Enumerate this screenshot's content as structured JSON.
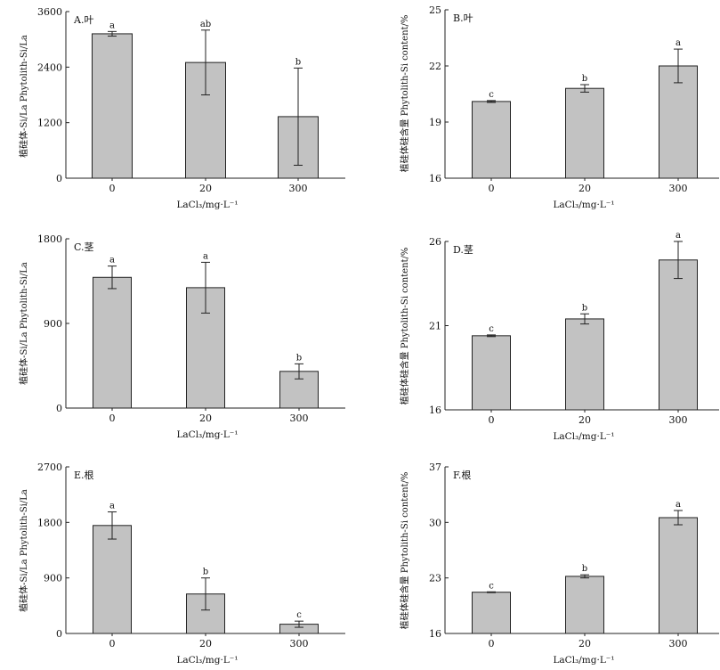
{
  "chart_data": [
    {
      "type": "bar",
      "panel_label": "A.叶",
      "categories": [
        "0",
        "20",
        "300"
      ],
      "values": [
        3120,
        2500,
        1330
      ],
      "errors": [
        50,
        700,
        1050
      ],
      "sig_letters": [
        "a",
        "ab",
        "b"
      ],
      "ylim": [
        0,
        3600
      ],
      "yticks": [
        "0",
        "1200",
        "2400",
        "3600"
      ],
      "xlabel": "LaCl₃/mg·L⁻¹",
      "ylabel": "植硅体-Si/La Phytolith-Si/La"
    },
    {
      "type": "bar",
      "panel_label": "B.叶",
      "categories": [
        "0",
        "20",
        "300"
      ],
      "values": [
        20.1,
        20.8,
        22.0
      ],
      "errors": [
        0.05,
        0.2,
        0.9
      ],
      "sig_letters": [
        "c",
        "b",
        "a"
      ],
      "ylim": [
        16,
        25
      ],
      "yticks": [
        "16",
        "19",
        "22",
        "25"
      ],
      "xlabel": "LaCl₃/mg·L⁻¹",
      "ylabel": "植硅体硅含量 Phytolith-Si content/%"
    },
    {
      "type": "bar",
      "panel_label": "C.茎",
      "categories": [
        "0",
        "20",
        "300"
      ],
      "values": [
        1390,
        1280,
        390
      ],
      "errors": [
        120,
        270,
        80
      ],
      "sig_letters": [
        "a",
        "a",
        "b"
      ],
      "ylim": [
        0,
        1800
      ],
      "yticks": [
        "0",
        "900",
        "1800"
      ],
      "xlabel": "LaCl₃/mg·L⁻¹",
      "ylabel": "植硅体-Si/La Phytolith-Si/La"
    },
    {
      "type": "bar",
      "panel_label": "D.茎",
      "categories": [
        "0",
        "20",
        "300"
      ],
      "values": [
        20.4,
        21.4,
        24.9
      ],
      "errors": [
        0.05,
        0.3,
        1.1
      ],
      "sig_letters": [
        "c",
        "b",
        "a"
      ],
      "ylim": [
        16,
        26
      ],
      "yticks": [
        "16",
        "21",
        "26"
      ],
      "xlabel": "LaCl₃/mg·L⁻¹",
      "ylabel": "植硅体硅含量 Phytolith-Si content/%"
    },
    {
      "type": "bar",
      "panel_label": "E.根",
      "categories": [
        "0",
        "20",
        "300"
      ],
      "values": [
        1750,
        640,
        150
      ],
      "errors": [
        220,
        260,
        50
      ],
      "sig_letters": [
        "a",
        "b",
        "c"
      ],
      "ylim": [
        0,
        2700
      ],
      "yticks": [
        "0",
        "900",
        "1800",
        "2700"
      ],
      "xlabel": "LaCl₃/mg·L⁻¹",
      "ylabel": "植硅体-Si/La Phytolith-Si/La"
    },
    {
      "type": "bar",
      "panel_label": "F.根",
      "categories": [
        "0",
        "20",
        "300"
      ],
      "values": [
        21.2,
        23.2,
        30.6
      ],
      "errors": [
        0.05,
        0.2,
        0.9
      ],
      "sig_letters": [
        "c",
        "b",
        "a"
      ],
      "ylim": [
        16,
        37
      ],
      "yticks": [
        "16",
        "23",
        "30",
        "37"
      ],
      "xlabel": "LaCl₃/mg·L⁻¹",
      "ylabel": "植硅体硅含量 Phytolith-Si content/%"
    }
  ],
  "colors": {
    "bar_fill": "#c2c2c2",
    "bar_stroke": "#222222",
    "axis": "#222222"
  }
}
